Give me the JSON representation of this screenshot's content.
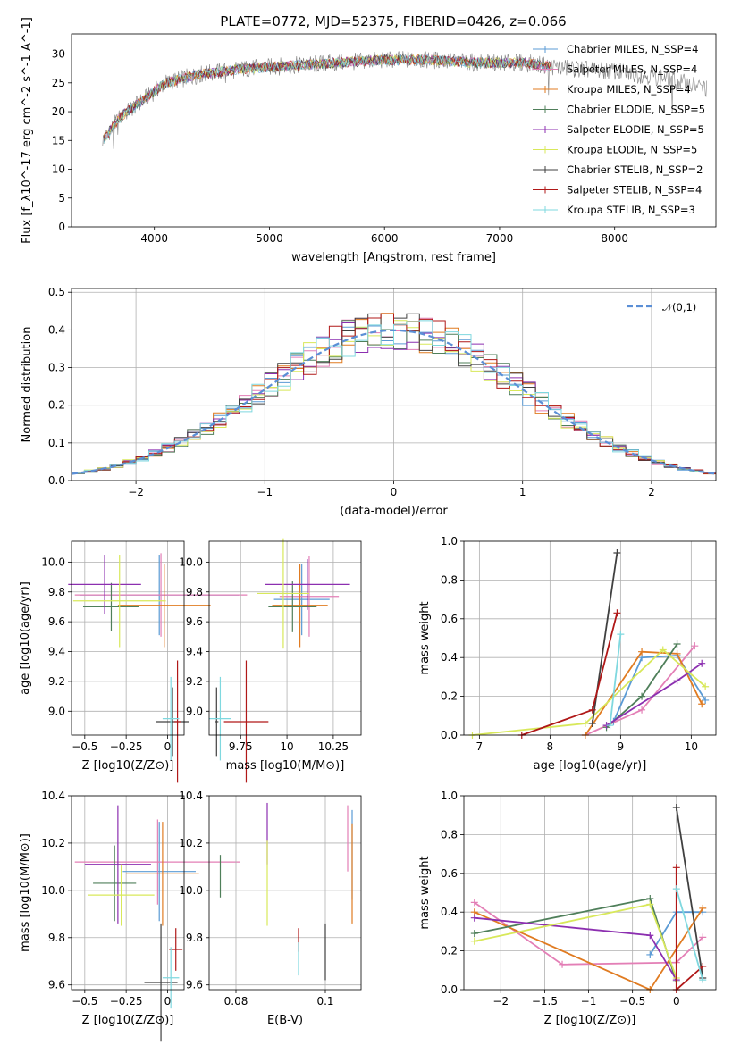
{
  "figure": {
    "title": "PLATE=0772, MJD=52375, FIBERID=0426, z=0.066"
  },
  "series_styles": [
    {
      "name": "Chabrier MILES, N_SSP=4",
      "color": "#5b9bd5"
    },
    {
      "name": "Salpeter MILES, N_SSP=4",
      "color": "#e37fb6"
    },
    {
      "name": "Kroupa MILES, N_SSP=4",
      "color": "#e07b21"
    },
    {
      "name": "Chabrier ELODIE, N_SSP=5",
      "color": "#4f7f5a"
    },
    {
      "name": "Salpeter ELODIE, N_SSP=5",
      "color": "#8c2fb0"
    },
    {
      "name": "Kroupa ELODIE, N_SSP=5",
      "color": "#d8e85a"
    },
    {
      "name": "Chabrier STELIB, N_SSP=2",
      "color": "#404040"
    },
    {
      "name": "Salpeter STELIB, N_SSP=4",
      "color": "#b01818"
    },
    {
      "name": "Kroupa STELIB, N_SSP=3",
      "color": "#7fd8df"
    }
  ],
  "chart_data": [
    {
      "id": "spectrum",
      "type": "line",
      "title": "PLATE=0772, MJD=52375, FIBERID=0426, z=0.066",
      "xlabel": "wavelength [Angstrom, rest frame]",
      "ylabel": "Flux [f_λ10^-17 erg cm^-2 s^-1 A^-1]",
      "xlim": [
        3280,
        8880
      ],
      "ylim": [
        0,
        33.5
      ],
      "xticks": [
        4000,
        5000,
        6000,
        7000,
        8000
      ],
      "yticks": [
        0,
        5,
        10,
        15,
        20,
        25,
        30
      ],
      "grid": false,
      "legend": {
        "position": "right",
        "entries": [
          "Chabrier MILES, N_SSP=4",
          "Salpeter MILES, N_SSP=4",
          "Kroupa MILES, N_SSP=4",
          "Chabrier ELODIE, N_SSP=5",
          "Salpeter ELODIE, N_SSP=5",
          "Kroupa ELODIE, N_SSP=5",
          "Chabrier STELIB, N_SSP=2",
          "Salpeter STELIB, N_SSP=4",
          "Kroupa STELIB, N_SSP=3"
        ]
      },
      "continuum": {
        "x": [
          3550,
          3700,
          3900,
          4100,
          4400,
          4800,
          5200,
          5600,
          6000,
          6400,
          6800,
          7200,
          7600,
          8000,
          8400,
          8800
        ],
        "y": [
          15,
          19,
          22,
          25,
          26.5,
          27.5,
          28,
          28.5,
          29,
          29,
          28.5,
          28.5,
          27.5,
          27,
          26,
          24
        ]
      },
      "notes": {
        "data_color": "#808080",
        "model_end_wavelength": 7450
      }
    },
    {
      "id": "residual-histogram",
      "type": "step",
      "xlabel": "(data-model)/error",
      "ylabel": "Normed distribution",
      "xlim": [
        -2.5,
        2.5
      ],
      "ylim": [
        0,
        0.51
      ],
      "xticks": [
        -2,
        -1,
        0,
        1,
        2
      ],
      "yticks": [
        0.0,
        0.1,
        0.2,
        0.3,
        0.4,
        0.5
      ],
      "grid": true,
      "legend": {
        "position": "top-right",
        "entries": [
          "𝒩(0,1)"
        ]
      },
      "reference_curve": {
        "name": "𝒩(0,1)",
        "color": "#5b8fd6",
        "dash": true,
        "mu": 0,
        "sigma": 1
      },
      "bin_width": 0.1
    },
    {
      "id": "age-vs-Z",
      "type": "errorbar",
      "xlabel": "Z [log10(Z/Z⊙)]",
      "ylabel": "age [log10(age/yr)]",
      "xlim": [
        -0.58,
        0.1
      ],
      "ylim": [
        8.84,
        10.14
      ],
      "xticks": [
        -0.5,
        -0.25,
        0.0
      ],
      "yticks": [
        9.0,
        9.2,
        9.4,
        9.6,
        9.8,
        10.0
      ],
      "grid": true,
      "points": [
        {
          "x": -0.05,
          "xerr": 0.48,
          "y": 9.78,
          "yerr": 0.27,
          "color": "#5b9bd5"
        },
        {
          "x": -0.04,
          "xerr": 0.52,
          "y": 9.78,
          "yerr": 0.28,
          "color": "#e37fb6"
        },
        {
          "x": -0.02,
          "xerr": 0.28,
          "y": 9.71,
          "yerr": 0.28,
          "color": "#e07b21"
        },
        {
          "x": -0.34,
          "xerr": 0.17,
          "y": 9.7,
          "yerr": 0.16,
          "color": "#4f7f5a"
        },
        {
          "x": -0.38,
          "xerr": 0.22,
          "y": 9.85,
          "yerr": 0.2,
          "color": "#8c2fb0"
        },
        {
          "x": -0.29,
          "xerr": 0.28,
          "y": 9.74,
          "yerr": 0.31,
          "color": "#d8e85a"
        },
        {
          "x": 0.03,
          "xerr": 0.1,
          "y": 8.93,
          "yerr": 0.23,
          "color": "#404040"
        },
        {
          "x": 0.06,
          "xerr": 0.02,
          "y": 8.93,
          "yerr": 0.41,
          "color": "#b01818"
        },
        {
          "x": 0.02,
          "xerr": 0.05,
          "y": 8.95,
          "yerr": 0.28,
          "color": "#7fd8df"
        }
      ]
    },
    {
      "id": "age-vs-mass",
      "type": "errorbar",
      "xlabel": "mass [log10(M/M⊙)]",
      "ylabel": "",
      "xlim": [
        9.58,
        10.4
      ],
      "ylim": [
        8.84,
        10.14
      ],
      "xticks": [
        9.75,
        10.0,
        10.25
      ],
      "yticks": [
        9.0,
        9.2,
        9.4,
        9.6,
        9.8,
        10.0
      ],
      "grid": true,
      "points": [
        {
          "x": 10.08,
          "xerr": 0.15,
          "y": 9.75,
          "yerr": 0.24,
          "color": "#5b9bd5"
        },
        {
          "x": 10.12,
          "xerr": 0.16,
          "y": 9.77,
          "yerr": 0.27,
          "color": "#e37fb6"
        },
        {
          "x": 10.07,
          "xerr": 0.15,
          "y": 9.71,
          "yerr": 0.28,
          "color": "#e07b21"
        },
        {
          "x": 10.03,
          "xerr": 0.13,
          "y": 9.7,
          "yerr": 0.17,
          "color": "#4f7f5a"
        },
        {
          "x": 10.11,
          "xerr": 0.23,
          "y": 9.85,
          "yerr": 0.17,
          "color": "#8c2fb0"
        },
        {
          "x": 9.98,
          "xerr": 0.14,
          "y": 9.79,
          "yerr": 0.37,
          "color": "#d8e85a"
        },
        {
          "x": 9.62,
          "xerr": 0.01,
          "y": 8.93,
          "yerr": 0.23,
          "color": "#404040"
        },
        {
          "x": 9.78,
          "xerr": 0.12,
          "y": 8.93,
          "yerr": 0.41,
          "color": "#b01818"
        },
        {
          "x": 9.64,
          "xerr": 0.06,
          "y": 8.95,
          "yerr": 0.28,
          "color": "#7fd8df"
        }
      ]
    },
    {
      "id": "weight-vs-age",
      "type": "line",
      "xlabel": "age [log10(age/yr)]",
      "ylabel": "mass weight",
      "xlim": [
        6.78,
        10.35
      ],
      "ylim": [
        0,
        1.0
      ],
      "xticks": [
        7,
        8,
        9,
        10
      ],
      "yticks": [
        0.0,
        0.2,
        0.4,
        0.6,
        0.8,
        1.0
      ],
      "grid": true,
      "series": [
        {
          "color": "#5b9bd5",
          "x": [
            8.9,
            9.3,
            9.8,
            10.2
          ],
          "y": [
            0.07,
            0.4,
            0.41,
            0.18
          ]
        },
        {
          "color": "#e37fb6",
          "x": [
            8.5,
            9.3,
            10.05
          ],
          "y": [
            0.0,
            0.13,
            0.46
          ]
        },
        {
          "color": "#e07b21",
          "x": [
            8.5,
            9.3,
            9.8,
            10.15
          ],
          "y": [
            0.0,
            0.43,
            0.42,
            0.16
          ]
        },
        {
          "color": "#4f7f5a",
          "x": [
            8.8,
            9.3,
            9.8
          ],
          "y": [
            0.04,
            0.2,
            0.47
          ]
        },
        {
          "color": "#8c2fb0",
          "x": [
            8.8,
            9.8,
            10.15
          ],
          "y": [
            0.05,
            0.28,
            0.37
          ]
        },
        {
          "color": "#d8e85a",
          "x": [
            6.9,
            8.5,
            9.6,
            10.2
          ],
          "y": [
            0.0,
            0.06,
            0.44,
            0.25
          ]
        },
        {
          "color": "#404040",
          "x": [
            8.6,
            8.95
          ],
          "y": [
            0.06,
            0.94
          ]
        },
        {
          "color": "#b01818",
          "x": [
            7.6,
            8.6,
            8.95
          ],
          "y": [
            0.0,
            0.13,
            0.63
          ]
        },
        {
          "color": "#7fd8df",
          "x": [
            8.85,
            9.0
          ],
          "y": [
            0.05,
            0.52
          ]
        }
      ]
    },
    {
      "id": "mass-vs-Z",
      "type": "errorbar",
      "xlabel": "Z [log10(Z/Z⊙)]",
      "ylabel": "mass [log10(M/M⊙)]",
      "xlim": [
        -0.58,
        0.1
      ],
      "ylim": [
        9.58,
        10.4
      ],
      "xticks": [
        -0.5,
        -0.25,
        0.0
      ],
      "yticks": [
        9.6,
        9.8,
        10.0,
        10.2,
        10.4
      ],
      "grid": true,
      "points": [
        {
          "x": -0.05,
          "xerr": 0.22,
          "y": 10.08,
          "yerr": 0.21,
          "color": "#5b9bd5"
        },
        {
          "x": -0.06,
          "xerr": 0.5,
          "y": 10.12,
          "yerr": 0.18,
          "color": "#e37fb6"
        },
        {
          "x": -0.03,
          "xerr": 0.22,
          "y": 10.07,
          "yerr": 0.22,
          "color": "#e07b21"
        },
        {
          "x": -0.32,
          "xerr": 0.13,
          "y": 10.03,
          "yerr": 0.16,
          "color": "#4f7f5a"
        },
        {
          "x": -0.3,
          "xerr": 0.2,
          "y": 10.11,
          "yerr": 0.25,
          "color": "#8c2fb0"
        },
        {
          "x": -0.28,
          "xerr": 0.2,
          "y": 9.98,
          "yerr": 0.13,
          "color": "#d8e85a"
        },
        {
          "x": -0.04,
          "xerr": 0.1,
          "y": 9.61,
          "yerr": 0.25,
          "color": "#404040"
        },
        {
          "x": 0.05,
          "xerr": 0.04,
          "y": 9.75,
          "yerr": 0.09,
          "color": "#b01818"
        },
        {
          "x": 0.02,
          "xerr": 0.05,
          "y": 9.63,
          "yerr": 0.13,
          "color": "#7fd8df"
        }
      ]
    },
    {
      "id": "mass-vs-EBV",
      "type": "errorbar",
      "xlabel": "E(B-V)",
      "ylabel": "",
      "xlim": [
        0.074,
        0.108
      ],
      "ylim": [
        9.58,
        10.4
      ],
      "xticks": [
        0.08,
        0.1
      ],
      "yticks": [
        9.6,
        9.8,
        10.0,
        10.2,
        10.4
      ],
      "grid": true,
      "points": [
        {
          "x": 0.106,
          "xerr": 0,
          "y": 10.15,
          "yerr": 0.19,
          "color": "#5b9bd5"
        },
        {
          "x": 0.105,
          "xerr": 0,
          "y": 10.22,
          "yerr": 0.14,
          "color": "#e37fb6"
        },
        {
          "x": 0.106,
          "xerr": 0,
          "y": 10.07,
          "yerr": 0.21,
          "color": "#e07b21"
        },
        {
          "x": 0.0765,
          "xerr": 0,
          "y": 10.06,
          "yerr": 0.09,
          "color": "#4f7f5a"
        },
        {
          "x": 0.087,
          "xerr": 0,
          "y": 10.24,
          "yerr": 0.13,
          "color": "#8c2fb0"
        },
        {
          "x": 0.087,
          "xerr": 0,
          "y": 10.03,
          "yerr": 0.18,
          "color": "#d8e85a"
        },
        {
          "x": 0.1,
          "xerr": 0,
          "y": 9.74,
          "yerr": 0.12,
          "color": "#404040"
        },
        {
          "x": 0.094,
          "xerr": 0,
          "y": 9.79,
          "yerr": 0.05,
          "color": "#b01818"
        },
        {
          "x": 0.094,
          "xerr": 0,
          "y": 9.71,
          "yerr": 0.07,
          "color": "#7fd8df"
        }
      ]
    },
    {
      "id": "weight-vs-Z",
      "type": "line",
      "xlabel": "Z [log10(Z/Z⊙)]",
      "ylabel": "mass weight",
      "xlim": [
        -2.42,
        0.45
      ],
      "ylim": [
        0,
        1.0
      ],
      "xticks": [
        -2.0,
        -1.5,
        -1.0,
        -0.5,
        0.0
      ],
      "yticks": [
        0.0,
        0.2,
        0.4,
        0.6,
        0.8,
        1.0
      ],
      "grid": true,
      "series": [
        {
          "color": "#5b9bd5",
          "x": [
            -0.3,
            0.0,
            0.3
          ],
          "y": [
            0.18,
            0.4,
            0.4
          ]
        },
        {
          "color": "#e37fb6",
          "x": [
            -2.3,
            -1.3,
            0.0,
            0.3
          ],
          "y": [
            0.45,
            0.13,
            0.14,
            0.27
          ]
        },
        {
          "color": "#e07b21",
          "x": [
            -2.3,
            -0.3,
            0.3
          ],
          "y": [
            0.4,
            0.0,
            0.42
          ]
        },
        {
          "color": "#4f7f5a",
          "x": [
            -2.3,
            -0.3,
            0.0
          ],
          "y": [
            0.29,
            0.47,
            0.04
          ]
        },
        {
          "color": "#8c2fb0",
          "x": [
            -2.3,
            -0.3,
            0.0
          ],
          "y": [
            0.37,
            0.28,
            0.05
          ]
        },
        {
          "color": "#d8e85a",
          "x": [
            -2.3,
            -0.3,
            0.0
          ],
          "y": [
            0.25,
            0.44,
            0.06
          ]
        },
        {
          "color": "#404040",
          "x": [
            0.0,
            0.3
          ],
          "y": [
            0.94,
            0.06
          ]
        },
        {
          "color": "#b01818",
          "x": [
            0.0,
            0.0,
            0.3
          ],
          "y": [
            0.63,
            0.0,
            0.12
          ]
        },
        {
          "color": "#7fd8df",
          "x": [
            0.0,
            0.3
          ],
          "y": [
            0.52,
            0.05
          ]
        }
      ]
    }
  ]
}
